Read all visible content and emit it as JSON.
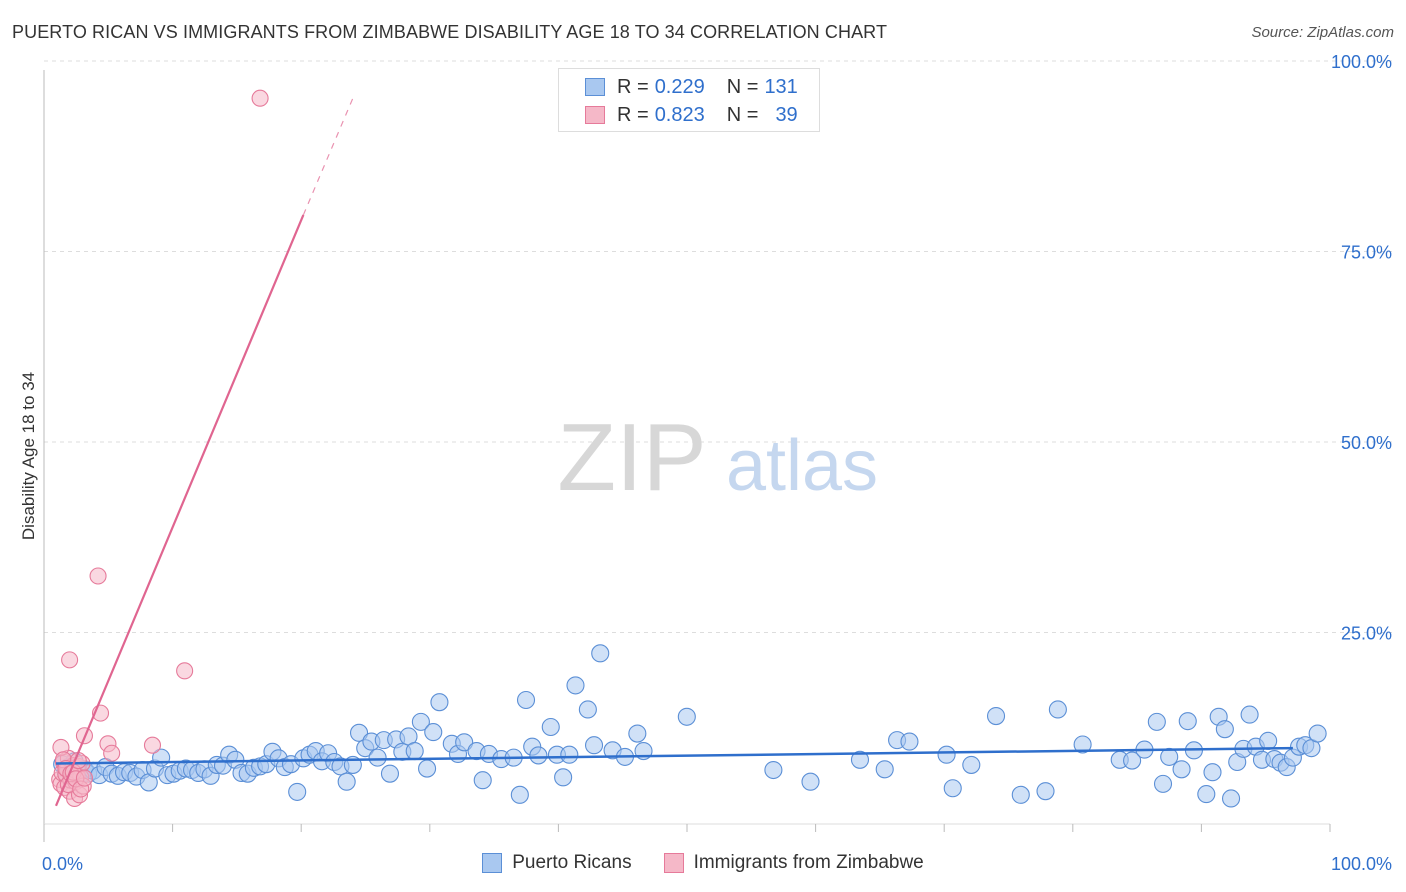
{
  "title": "PUERTO RICAN VS IMMIGRANTS FROM ZIMBABWE DISABILITY AGE 18 TO 34 CORRELATION CHART",
  "source": "Source: ZipAtlas.com",
  "watermark": {
    "zip": "ZIP",
    "atlas": "atlas"
  },
  "legend_top": {
    "rows": [
      {
        "r_label": "R = ",
        "r_value": "0.229",
        "n_label": "N = ",
        "n_value": "131",
        "color": "#a9c8f0"
      },
      {
        "r_label": "R = ",
        "r_value": "0.823",
        "n_label": "N = ",
        "n_value": "39",
        "color": "#f5b8c8"
      }
    ]
  },
  "legend_bottom": [
    {
      "label": "Puerto Ricans",
      "color": "#a9c8f0"
    },
    {
      "label": "Immigrants from Zimbabwe",
      "color": "#f5b8c8"
    }
  ],
  "colors": {
    "blue_fill": "#a9c8f0",
    "blue_stroke": "#5b8fd6",
    "blue_line": "#2f6fcc",
    "pink_fill": "#f5b8c8",
    "pink_stroke": "#e67a9a",
    "pink_line": "#e06590",
    "axis_text": "#2f6fcc",
    "grid": "#dddddd"
  },
  "chart_data": {
    "type": "scatter",
    "title": "PUERTO RICAN VS IMMIGRANTS FROM ZIMBABWE DISABILITY AGE 18 TO 34 CORRELATION CHART",
    "xlabel": "",
    "ylabel": "Disability Age 18 to 34",
    "xlim": [
      0,
      100
    ],
    "ylim": [
      0,
      102
    ],
    "x_tick_labels": [
      "0.0%",
      "100.0%"
    ],
    "y_ticks": [
      25,
      50,
      75,
      100
    ],
    "y_tick_labels": [
      "25.0%",
      "50.0%",
      "75.0%",
      "100.0%"
    ],
    "series": [
      {
        "name": "Puerto Ricans",
        "R": 0.229,
        "N": 131,
        "trend": {
          "x": [
            0,
            100
          ],
          "y": [
            8.3,
            10.4
          ],
          "dashed_to": null
        },
        "points": [
          [
            0.5,
            8.2
          ],
          [
            0.8,
            7.0
          ],
          [
            1.0,
            7.8
          ],
          [
            1.2,
            6.5
          ],
          [
            1.5,
            8.6
          ],
          [
            1.8,
            7.2
          ],
          [
            2.0,
            6.8
          ],
          [
            2.3,
            7.5
          ],
          [
            2.6,
            6.9
          ],
          [
            3.0,
            7.3
          ],
          [
            3.5,
            6.7
          ],
          [
            4.0,
            7.8
          ],
          [
            4.5,
            6.9
          ],
          [
            5.0,
            6.6
          ],
          [
            5.5,
            7.1
          ],
          [
            6.0,
            7.0
          ],
          [
            6.5,
            6.5
          ],
          [
            7.0,
            7.4
          ],
          [
            7.5,
            5.7
          ],
          [
            8.0,
            7.6
          ],
          [
            8.5,
            9.1
          ],
          [
            9.0,
            6.7
          ],
          [
            9.5,
            6.9
          ],
          [
            10.0,
            7.3
          ],
          [
            10.5,
            7.6
          ],
          [
            11.0,
            7.4
          ],
          [
            11.5,
            7.0
          ],
          [
            12.0,
            7.5
          ],
          [
            12.5,
            6.6
          ],
          [
            13.0,
            8.1
          ],
          [
            13.5,
            8.0
          ],
          [
            14.0,
            9.5
          ],
          [
            14.5,
            8.8
          ],
          [
            15.0,
            7.0
          ],
          [
            15.5,
            6.9
          ],
          [
            16.0,
            7.7
          ],
          [
            16.5,
            7.9
          ],
          [
            17.0,
            8.2
          ],
          [
            17.5,
            9.9
          ],
          [
            18.0,
            9.0
          ],
          [
            18.5,
            7.8
          ],
          [
            19.0,
            8.2
          ],
          [
            19.5,
            4.4
          ],
          [
            20.0,
            9.0
          ],
          [
            20.5,
            9.5
          ],
          [
            21.0,
            10.0
          ],
          [
            21.5,
            8.6
          ],
          [
            22.0,
            9.7
          ],
          [
            22.5,
            8.5
          ],
          [
            23.0,
            7.9
          ],
          [
            23.5,
            5.8
          ],
          [
            24.0,
            8.1
          ],
          [
            24.5,
            12.5
          ],
          [
            25.0,
            10.4
          ],
          [
            25.5,
            11.3
          ],
          [
            26.0,
            9.1
          ],
          [
            26.5,
            11.5
          ],
          [
            27.0,
            6.9
          ],
          [
            27.5,
            11.6
          ],
          [
            28.0,
            9.9
          ],
          [
            28.5,
            12.0
          ],
          [
            29.0,
            10.0
          ],
          [
            29.5,
            14.0
          ],
          [
            30.0,
            7.6
          ],
          [
            30.5,
            12.6
          ],
          [
            31.0,
            16.7
          ],
          [
            32.0,
            11.0
          ],
          [
            32.5,
            9.6
          ],
          [
            33.0,
            11.2
          ],
          [
            34.0,
            10.0
          ],
          [
            34.5,
            6.0
          ],
          [
            35.0,
            9.6
          ],
          [
            36.0,
            8.9
          ],
          [
            37.0,
            9.1
          ],
          [
            37.5,
            4.0
          ],
          [
            38.0,
            17.0
          ],
          [
            38.5,
            10.6
          ],
          [
            39.0,
            9.4
          ],
          [
            40.0,
            13.3
          ],
          [
            40.5,
            9.5
          ],
          [
            41.0,
            6.4
          ],
          [
            41.5,
            9.5
          ],
          [
            42.0,
            19.0
          ],
          [
            43.0,
            15.7
          ],
          [
            43.5,
            10.8
          ],
          [
            44.0,
            23.4
          ],
          [
            45.0,
            10.1
          ],
          [
            46.0,
            9.2
          ],
          [
            47.0,
            12.4
          ],
          [
            47.5,
            10.0
          ],
          [
            51.0,
            14.7
          ],
          [
            58.0,
            7.4
          ],
          [
            61.0,
            5.8
          ],
          [
            65.0,
            8.8
          ],
          [
            67.0,
            7.5
          ],
          [
            68.0,
            11.5
          ],
          [
            69.0,
            11.3
          ],
          [
            72.0,
            9.5
          ],
          [
            72.5,
            4.9
          ],
          [
            74.0,
            8.1
          ],
          [
            76.0,
            14.8
          ],
          [
            78.0,
            4.0
          ],
          [
            80.0,
            4.5
          ],
          [
            81.0,
            15.7
          ],
          [
            83.0,
            10.9
          ],
          [
            86.0,
            8.8
          ],
          [
            87.0,
            8.7
          ],
          [
            88.0,
            10.2
          ],
          [
            89.0,
            14.0
          ],
          [
            89.5,
            5.5
          ],
          [
            90.0,
            9.2
          ],
          [
            91.0,
            7.5
          ],
          [
            91.5,
            14.1
          ],
          [
            92.0,
            10.1
          ],
          [
            93.0,
            4.1
          ],
          [
            93.5,
            7.1
          ],
          [
            94.0,
            14.7
          ],
          [
            94.5,
            13.0
          ],
          [
            95.0,
            3.5
          ],
          [
            95.5,
            8.5
          ],
          [
            96.0,
            10.3
          ],
          [
            96.5,
            15.0
          ],
          [
            97.0,
            10.6
          ],
          [
            97.5,
            8.8
          ],
          [
            98.0,
            11.4
          ],
          [
            98.5,
            8.9
          ],
          [
            99.0,
            8.4
          ],
          [
            99.5,
            7.8
          ],
          [
            100.0,
            9.1
          ],
          [
            100.5,
            10.6
          ],
          [
            101.0,
            10.8
          ],
          [
            101.5,
            10.4
          ],
          [
            102.0,
            12.4
          ]
        ]
      },
      {
        "name": "Immigrants from Zimbabwe",
        "R": 0.823,
        "N": 39,
        "trend": {
          "x": [
            0,
            20
          ],
          "y": [
            2.5,
            83.5
          ],
          "dashed_x": [
            20,
            24
          ],
          "dashed_y": [
            83.5,
            99.5
          ]
        },
        "points": [
          [
            0.3,
            6.1
          ],
          [
            0.4,
            5.5
          ],
          [
            0.5,
            7.0
          ],
          [
            0.6,
            8.5
          ],
          [
            0.7,
            5.0
          ],
          [
            0.8,
            6.8
          ],
          [
            0.9,
            7.5
          ],
          [
            1.0,
            9.0
          ],
          [
            1.1,
            4.5
          ],
          [
            1.2,
            6.0
          ],
          [
            1.3,
            7.2
          ],
          [
            1.4,
            8.0
          ],
          [
            1.5,
            3.5
          ],
          [
            1.6,
            5.8
          ],
          [
            1.7,
            6.6
          ],
          [
            1.8,
            7.9
          ],
          [
            1.9,
            4.0
          ],
          [
            2.0,
            6.4
          ],
          [
            2.1,
            8.3
          ],
          [
            2.2,
            5.2
          ],
          [
            0.4,
            10.5
          ],
          [
            0.6,
            8.8
          ],
          [
            0.8,
            7.6
          ],
          [
            1.0,
            5.4
          ],
          [
            1.2,
            6.9
          ],
          [
            1.4,
            7.1
          ],
          [
            1.6,
            6.2
          ],
          [
            1.8,
            8.7
          ],
          [
            2.0,
            4.8
          ],
          [
            2.3,
            6.3
          ],
          [
            1.1,
            22.5
          ],
          [
            2.3,
            12.1
          ],
          [
            3.4,
            34.0
          ],
          [
            3.6,
            15.2
          ],
          [
            4.2,
            11.0
          ],
          [
            4.5,
            9.7
          ],
          [
            7.8,
            10.8
          ],
          [
            10.4,
            21.0
          ],
          [
            16.5,
            99.5
          ]
        ]
      }
    ]
  }
}
